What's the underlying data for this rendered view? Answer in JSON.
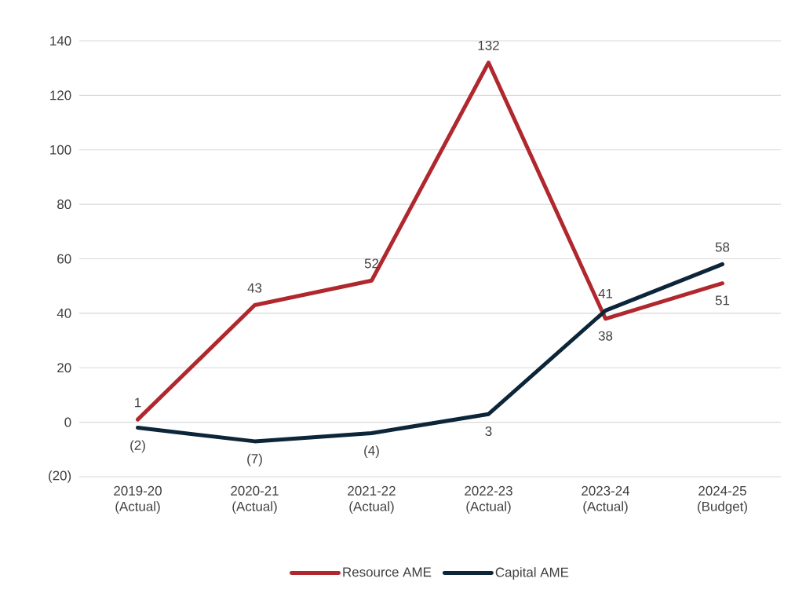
{
  "chart_data": {
    "type": "line",
    "categories": [
      "2019-20 (Actual)",
      "2020-21 (Actual)",
      "2021-22 (Actual)",
      "2022-23 (Actual)",
      "2023-24 (Actual)",
      "2024-25 (Budget)"
    ],
    "series": [
      {
        "name": "Resource AME",
        "color": "#b0272d",
        "values": [
          1,
          43,
          52,
          132,
          38,
          51
        ],
        "value_labels": [
          "1",
          "43",
          "52",
          "132",
          "38",
          "51"
        ]
      },
      {
        "name": "Capital AME",
        "color": "#0d2538",
        "values": [
          -2,
          -7,
          -4,
          3,
          41,
          58
        ],
        "value_labels": [
          "(2)",
          "(7)",
          "(4)",
          "3",
          "41",
          "58"
        ]
      }
    ],
    "ylim": [
      -20,
      140
    ],
    "yticks": [
      {
        "value": -20,
        "label": "(20)"
      },
      0,
      20,
      40,
      60,
      80,
      100,
      120,
      140
    ],
    "grid": "y",
    "legend": "bottom",
    "marker": "none",
    "line_style": "solid"
  }
}
